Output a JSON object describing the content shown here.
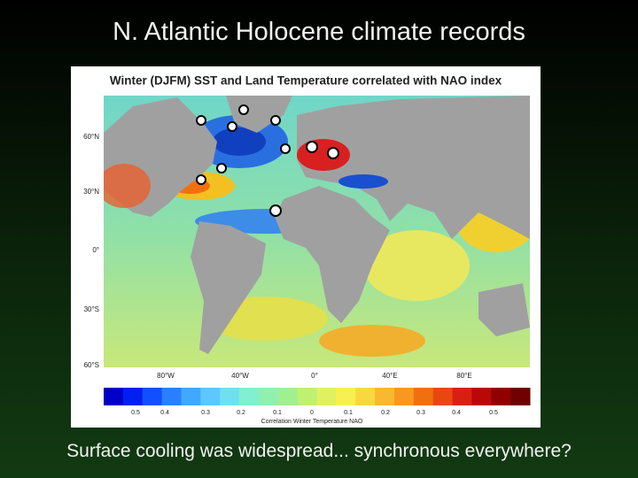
{
  "slide": {
    "title": "N. Atlantic Holocene climate records",
    "caption": "Surface cooling was widespread... synchronous everywhere?"
  },
  "figure": {
    "title": "Winter (DJFM) SST and Land Temperature correlated with NAO index",
    "lat_labels": [
      "60°N",
      "30°N",
      "0°",
      "30°S",
      "60°S"
    ],
    "lon_labels": [
      "80°W",
      "40°W",
      "0°",
      "40°E",
      "80°E"
    ],
    "colorbar_labels": [
      "0.5",
      "0.4",
      "0.3",
      "0.2",
      "0.1",
      "0",
      "0.1",
      "0.2",
      "0.3",
      "0.4",
      "0.5"
    ],
    "colorbar_caption": "Correlation Winter Temperature  NAO"
  }
}
